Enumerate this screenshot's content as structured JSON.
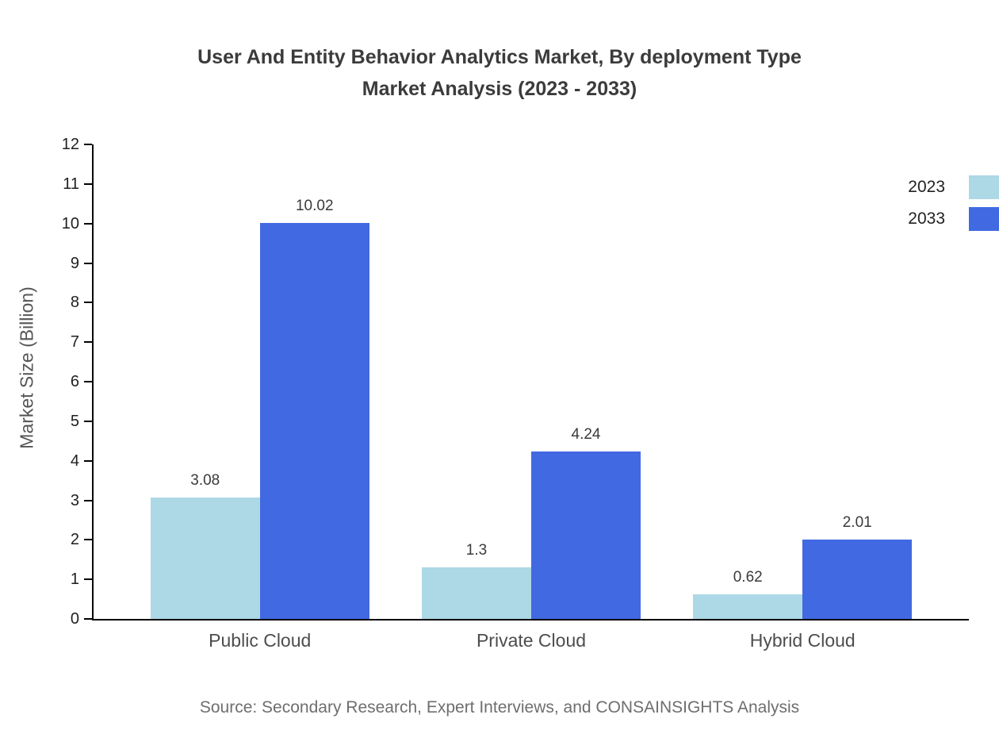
{
  "page": {
    "title_line1": "User And Entity Behavior Analytics Market, By deployment Type",
    "title_line2": "Market Analysis (2023 - 2033)",
    "source": "Source: Secondary Research, Expert Interviews, and CONSAINSIGHTS Analysis"
  },
  "chart_data": {
    "type": "bar",
    "title": "User And Entity Behavior Analytics Market, By deployment Type Market Analysis (2023 - 2033)",
    "categories": [
      "Public Cloud",
      "Private Cloud",
      "Hybrid Cloud"
    ],
    "series": [
      {
        "name": "2023",
        "color": "#ADD8E6",
        "values": [
          3.08,
          1.3,
          0.62
        ]
      },
      {
        "name": "2033",
        "color": "#4169E1",
        "values": [
          10.02,
          4.24,
          2.01
        ]
      }
    ],
    "xlabel": "",
    "ylabel": "Market Size (Billion)",
    "ylim": [
      0,
      12
    ],
    "ytick_step": 1,
    "grid": false,
    "legend_position": "top-right"
  }
}
